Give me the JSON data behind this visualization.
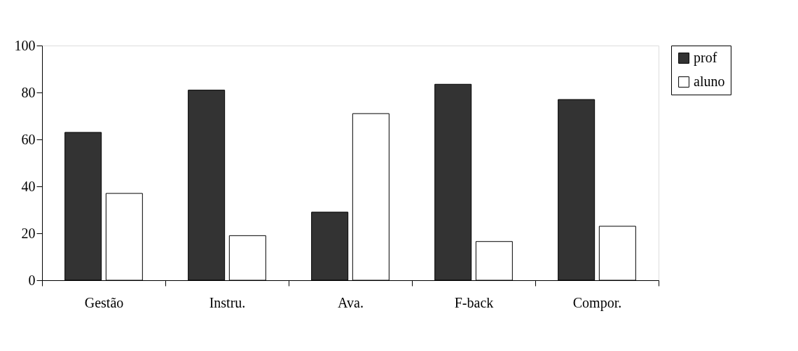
{
  "chart_data": {
    "type": "bar",
    "categories": [
      "Gestão",
      "Instru.",
      "Ava.",
      "F-back",
      "Compor."
    ],
    "series": [
      {
        "name": "prof",
        "color": "#333333",
        "values": [
          63,
          81,
          29,
          83.5,
          77
        ]
      },
      {
        "name": "aluno",
        "color": "#ffffff",
        "values": [
          37,
          19,
          71,
          16.5,
          23
        ]
      }
    ],
    "ylim": [
      0,
      100
    ],
    "yticks": [
      0,
      20,
      40,
      60,
      80,
      100
    ],
    "grid": false,
    "legend": "right"
  }
}
